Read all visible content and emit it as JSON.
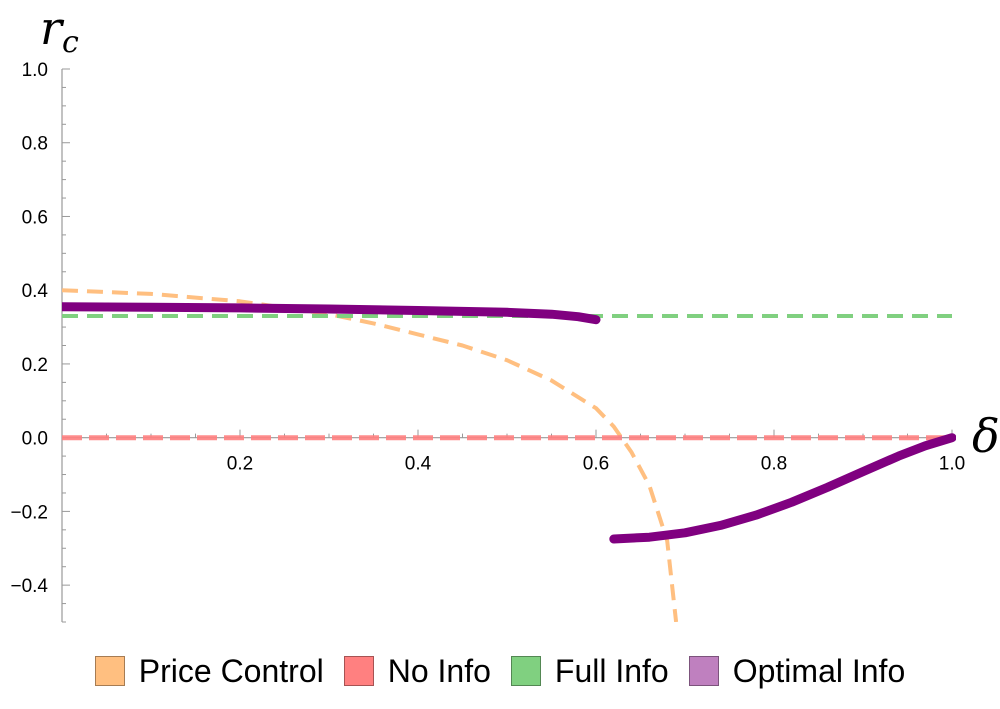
{
  "chart_data": {
    "type": "line",
    "title": "",
    "xlabel": "δ",
    "ylabel_main": "r",
    "ylabel_sub": "c",
    "xlim": [
      0,
      1
    ],
    "ylim": [
      -0.5,
      1.0
    ],
    "x_ticks": [
      0.2,
      0.4,
      0.6,
      0.8,
      1.0
    ],
    "x_tick_labels": [
      "0.2",
      "0.4",
      "0.6",
      "0.8",
      "1.0"
    ],
    "y_ticks": [
      -0.4,
      -0.2,
      0.0,
      0.2,
      0.4,
      0.6,
      0.8,
      1.0
    ],
    "y_tick_labels": [
      "−0.4",
      "−0.2",
      "0.0",
      "0.2",
      "0.4",
      "0.6",
      "0.8",
      "1.0"
    ],
    "grid": false,
    "legend_position": "bottom",
    "series": [
      {
        "name": "Price Control",
        "color": "#ffbf80",
        "dashed": true,
        "x": [
          0.0,
          0.1,
          0.2,
          0.3,
          0.35,
          0.4,
          0.45,
          0.5,
          0.55,
          0.6,
          0.62,
          0.64,
          0.66,
          0.68,
          0.69
        ],
        "y": [
          0.4,
          0.39,
          0.37,
          0.335,
          0.31,
          0.28,
          0.25,
          0.21,
          0.155,
          0.08,
          0.03,
          -0.04,
          -0.13,
          -0.28,
          -0.5
        ]
      },
      {
        "name": "No Info",
        "color": "#ff8080",
        "dashed": true,
        "x": [
          0.0,
          1.0
        ],
        "y": [
          0.0,
          0.0
        ]
      },
      {
        "name": "Full Info",
        "color": "#80d080",
        "dashed": true,
        "x": [
          0.0,
          1.0
        ],
        "y": [
          0.33,
          0.33
        ]
      },
      {
        "name": "Optimal Info",
        "color": "#800080",
        "legend_color": "#bf80bf",
        "dashed": false,
        "segments": [
          {
            "x": [
              0.0,
              0.1,
              0.2,
              0.3,
              0.4,
              0.5,
              0.55,
              0.58,
              0.6
            ],
            "y": [
              0.355,
              0.354,
              0.352,
              0.349,
              0.345,
              0.34,
              0.335,
              0.328,
              0.32
            ]
          },
          {
            "x": [
              0.62,
              0.66,
              0.7,
              0.74,
              0.78,
              0.82,
              0.86,
              0.9,
              0.94,
              0.97,
              1.0
            ],
            "y": [
              -0.275,
              -0.27,
              -0.258,
              -0.238,
              -0.21,
              -0.175,
              -0.135,
              -0.092,
              -0.05,
              -0.022,
              0.0
            ]
          }
        ]
      }
    ]
  }
}
